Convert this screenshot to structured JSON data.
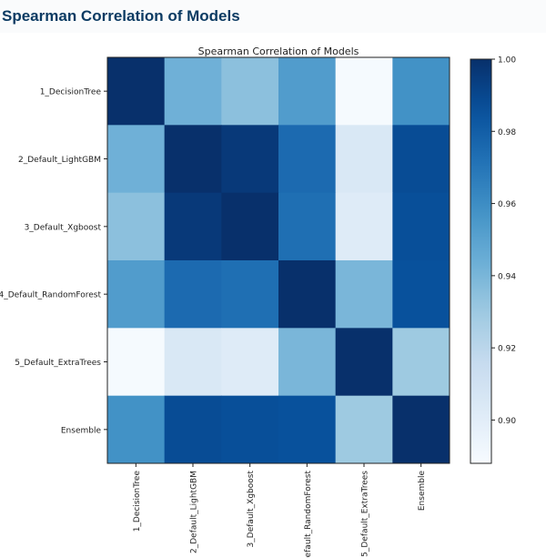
{
  "header": {
    "title": "Spearman Correlation of Models"
  },
  "chart_data": {
    "type": "heatmap",
    "title": "Spearman Correlation of Models",
    "colormap": "Blues",
    "labels": [
      "1_DecisionTree",
      "2_Default_LightGBM",
      "3_Default_Xgboost",
      "4_Default_RandomForest",
      "5_Default_ExtraTrees",
      "Ensemble"
    ],
    "values": [
      [
        1.0,
        0.943,
        0.935,
        0.953,
        0.889,
        0.958
      ],
      [
        0.943,
        1.0,
        0.996,
        0.975,
        0.905,
        0.988
      ],
      [
        0.935,
        0.996,
        1.0,
        0.973,
        0.902,
        0.987
      ],
      [
        0.953,
        0.975,
        0.973,
        1.0,
        0.94,
        0.986
      ],
      [
        0.889,
        0.905,
        0.902,
        0.94,
        1.0,
        0.93
      ],
      [
        0.958,
        0.988,
        0.987,
        0.986,
        0.93,
        1.0
      ]
    ],
    "colorbar": {
      "range": [
        0.888,
        1.0
      ],
      "ticks": [
        "0.90",
        "0.92",
        "0.94",
        "0.96",
        "0.98",
        "1.00"
      ]
    }
  }
}
